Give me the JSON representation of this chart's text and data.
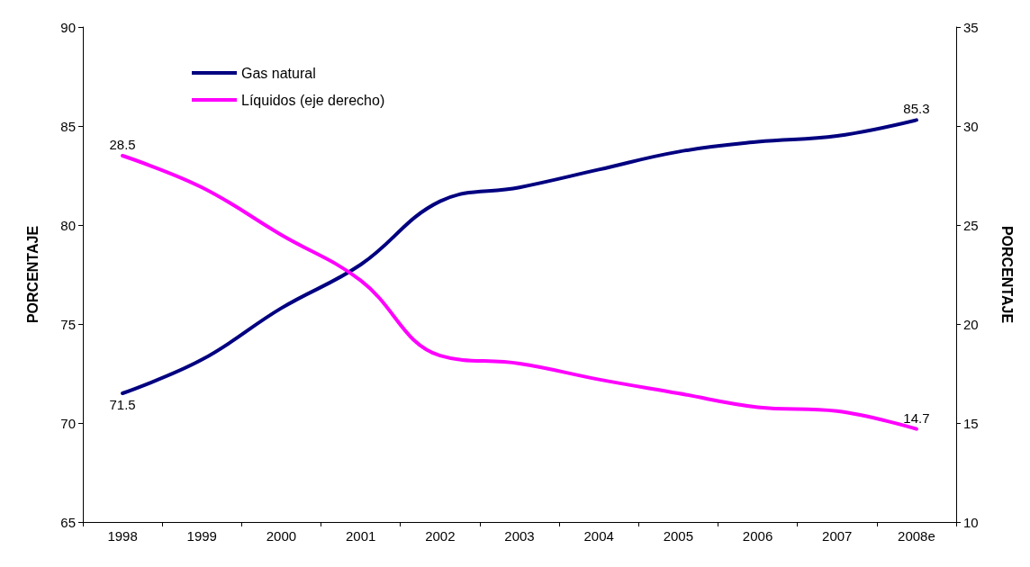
{
  "chart_data": {
    "type": "line",
    "ylabel": "PORCENTAJE",
    "y2label": "PORCENTAJE",
    "categories": [
      "1998",
      "1999",
      "2000",
      "2001",
      "2002",
      "2003",
      "2004",
      "2005",
      "2006",
      "2007",
      "2008e"
    ],
    "series": [
      {
        "name": "Gas natural",
        "color": "#000080",
        "values": [
          71.5,
          73.2,
          75.8,
          78.0,
          81.2,
          81.9,
          82.8,
          83.7,
          84.2,
          84.5,
          85.3
        ],
        "value_labels": [
          "71.5",
          null,
          null,
          null,
          null,
          null,
          null,
          null,
          null,
          null,
          "85.3"
        ]
      },
      {
        "name": "Líquidos (eje derecho)",
        "color": "#ff00ff",
        "axis": "y2",
        "values": [
          28.5,
          26.9,
          24.5,
          22.2,
          18.4,
          18.0,
          17.2,
          16.5,
          15.8,
          15.6,
          14.7
        ],
        "value_labels": [
          "28.5",
          null,
          null,
          null,
          null,
          null,
          null,
          null,
          null,
          null,
          "14.7"
        ]
      }
    ],
    "ylim": [
      65,
      90
    ],
    "yticks": [
      65,
      70,
      75,
      80,
      85,
      90
    ],
    "y2lim": [
      10,
      35
    ],
    "y2ticks": [
      10,
      15,
      20,
      25,
      30,
      35
    ],
    "grid": false,
    "legend": "top left",
    "marker": "none",
    "line_style": "solid"
  }
}
